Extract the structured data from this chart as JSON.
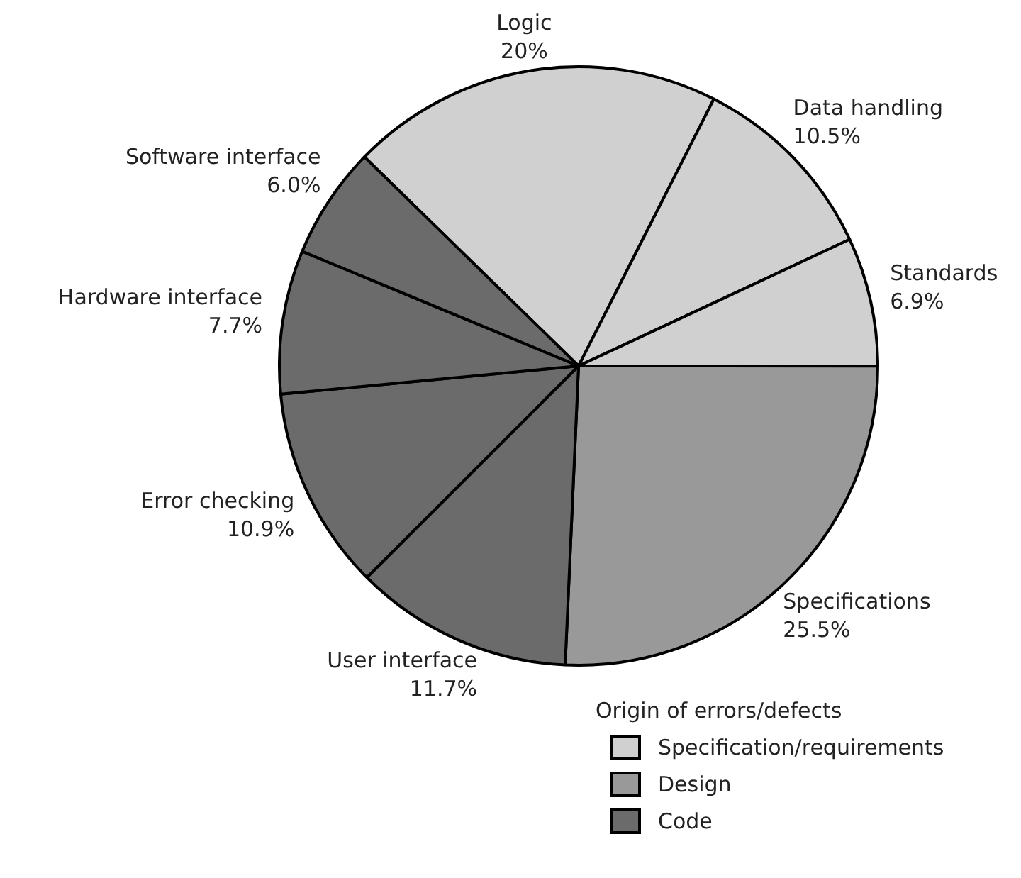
{
  "chart_data": {
    "type": "pie",
    "categories": [
      "Logic",
      "Data handling",
      "Standards",
      "Specifications",
      "User interface",
      "Error checking",
      "Hardware interface",
      "Software interface"
    ],
    "values": [
      20,
      10.5,
      6.9,
      25.5,
      11.7,
      10.9,
      7.7,
      6.0
    ],
    "colors": [
      "#d0d0d0",
      "#d0d0d0",
      "#d0d0d0",
      "#999999",
      "#6b6b6b",
      "#6b6b6b",
      "#6b6b6b",
      "#6b6b6b"
    ],
    "value_labels": [
      "20%",
      "10.5%",
      "6.9%",
      "25.5%",
      "11.7%",
      "10.9%",
      "7.7%",
      "6.0%"
    ],
    "legend_title": "Origin of errors/defects",
    "annotations": [
      "Specification/requirements",
      "Design",
      "Code"
    ]
  }
}
